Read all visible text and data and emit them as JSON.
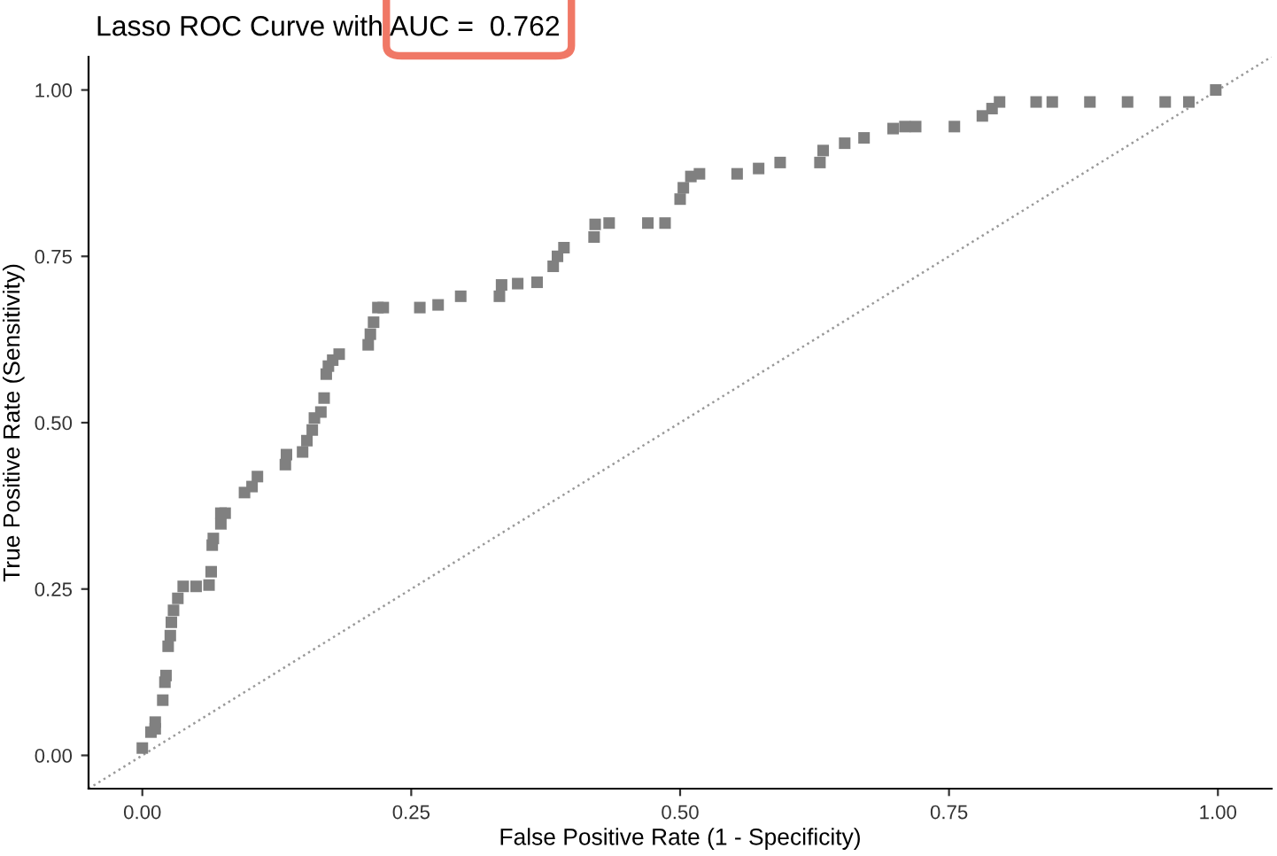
{
  "chart_data": {
    "type": "scatter",
    "title": "Lasso ROC Curve with AUC =  0.762",
    "xlabel": "False Positive Rate (1 - Specificity)",
    "ylabel": "True Positive Rate (Sensitivity)",
    "xlim": [
      -0.05,
      1.05
    ],
    "ylim": [
      -0.05,
      1.05
    ],
    "xticks": [
      {
        "value": 0,
        "label": "0.00"
      },
      {
        "value": 0.25,
        "label": "0.25"
      },
      {
        "value": 0.5,
        "label": "0.50"
      },
      {
        "value": 0.75,
        "label": "0.75"
      },
      {
        "value": 1,
        "label": "1.00"
      }
    ],
    "yticks": [
      {
        "value": 0,
        "label": "0.00"
      },
      {
        "value": 0.25,
        "label": "0.25"
      },
      {
        "value": 0.5,
        "label": "0.50"
      },
      {
        "value": 0.75,
        "label": "0.75"
      },
      {
        "value": 1,
        "label": "1.00"
      }
    ],
    "grid": false,
    "legend": false,
    "series": [
      {
        "type": "line",
        "color": "#999999",
        "line_style": "dotted",
        "marker": "none",
        "x": [
          -0.05,
          1.05
        ],
        "values": [
          -0.05,
          1.05
        ]
      },
      {
        "color": "#808080",
        "marker": "square",
        "x": [
          0,
          0.008,
          0.012,
          0.012,
          0.019,
          0.021,
          0.022,
          0.024,
          0.026,
          0.027,
          0.029,
          0.033,
          0.038,
          0.05,
          0.062,
          0.064,
          0.065,
          0.066,
          0.073,
          0.073,
          0.077,
          0.095,
          0.102,
          0.107,
          0.133,
          0.134,
          0.149,
          0.153,
          0.158,
          0.16,
          0.166,
          0.169,
          0.171,
          0.173,
          0.177,
          0.183,
          0.21,
          0.212,
          0.215,
          0.219,
          0.224,
          0.258,
          0.275,
          0.296,
          0.332,
          0.334,
          0.349,
          0.367,
          0.382,
          0.386,
          0.392,
          0.42,
          0.421,
          0.434,
          0.47,
          0.486,
          0.5,
          0.503,
          0.51,
          0.518,
          0.553,
          0.573,
          0.593,
          0.63,
          0.633,
          0.653,
          0.671,
          0.698,
          0.709,
          0.719,
          0.755,
          0.781,
          0.79,
          0.797,
          0.831,
          0.846,
          0.881,
          0.916,
          0.951,
          0.973,
          0.998
        ],
        "values": [
          0.011,
          0.035,
          0.05,
          0.04,
          0.083,
          0.11,
          0.12,
          0.164,
          0.18,
          0.2,
          0.218,
          0.236,
          0.254,
          0.254,
          0.256,
          0.276,
          0.316,
          0.326,
          0.348,
          0.364,
          0.364,
          0.395,
          0.404,
          0.419,
          0.437,
          0.452,
          0.456,
          0.473,
          0.489,
          0.507,
          0.516,
          0.537,
          0.573,
          0.585,
          0.594,
          0.603,
          0.617,
          0.633,
          0.651,
          0.673,
          0.673,
          0.673,
          0.677,
          0.69,
          0.69,
          0.707,
          0.709,
          0.711,
          0.735,
          0.75,
          0.763,
          0.779,
          0.798,
          0.8,
          0.8,
          0.8,
          0.836,
          0.853,
          0.87,
          0.874,
          0.874,
          0.882,
          0.891,
          0.891,
          0.909,
          0.92,
          0.928,
          0.942,
          0.945,
          0.945,
          0.945,
          0.961,
          0.972,
          0.982,
          0.982,
          0.982,
          0.982,
          0.982,
          0.982,
          0.982,
          1.0
        ]
      }
    ]
  }
}
